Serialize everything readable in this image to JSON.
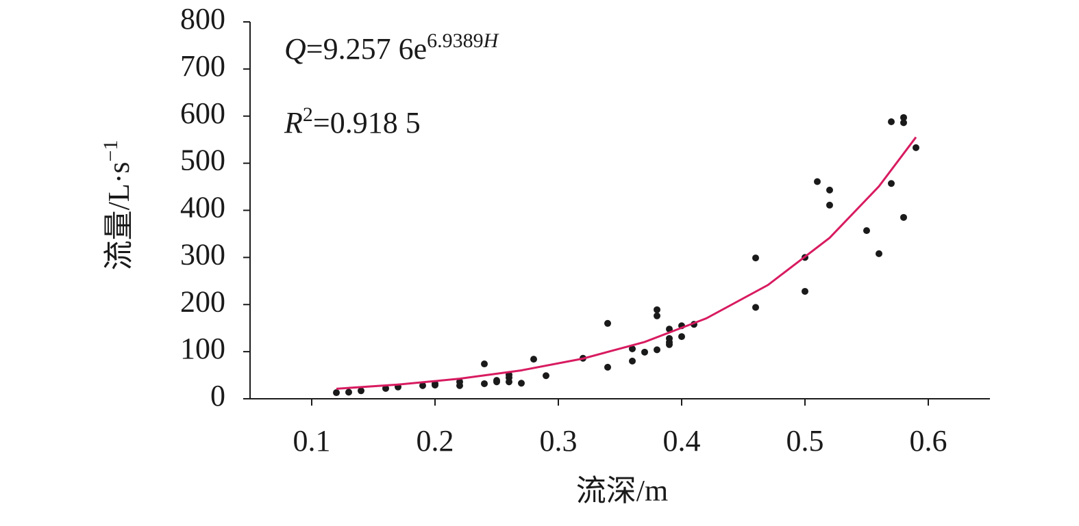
{
  "chart_data": {
    "type": "scatter",
    "xlabel": "流深/m",
    "ylabel": "流量/L·s",
    "ylabel_sup": "−1",
    "equation": {
      "var": "Q",
      "coef": "=9.257 6e",
      "exp": "6.9389",
      "exp_var": "H"
    },
    "r2": {
      "var": "R",
      "sup": "2",
      "val": "=0.918 5"
    },
    "xlim": [
      0.05,
      0.65
    ],
    "ylim": [
      0,
      800
    ],
    "xticks": [
      0.1,
      0.2,
      0.3,
      0.4,
      0.5,
      0.6
    ],
    "yticks": [
      0,
      100,
      200,
      300,
      400,
      500,
      600,
      700,
      800
    ],
    "series": [
      {
        "type": "scatter",
        "color": "#1a1a1a",
        "x": [
          0.12,
          0.13,
          0.14,
          0.16,
          0.17,
          0.19,
          0.2,
          0.2,
          0.22,
          0.22,
          0.24,
          0.24,
          0.25,
          0.25,
          0.26,
          0.26,
          0.26,
          0.27,
          0.28,
          0.29,
          0.32,
          0.34,
          0.34,
          0.36,
          0.36,
          0.37,
          0.38,
          0.38,
          0.38,
          0.39,
          0.39,
          0.39,
          0.39,
          0.4,
          0.4,
          0.41,
          0.46,
          0.46,
          0.5,
          0.5,
          0.51,
          0.52,
          0.52,
          0.55,
          0.56,
          0.57,
          0.57,
          0.58,
          0.58,
          0.58,
          0.59
        ],
        "values": [
          13,
          14,
          17,
          22,
          25,
          28,
          29,
          32,
          28,
          36,
          74,
          32,
          36,
          39,
          36,
          45,
          51,
          33,
          84,
          49,
          86,
          160,
          67,
          80,
          106,
          99,
          189,
          176,
          104,
          148,
          128,
          120,
          115,
          155,
          132,
          158,
          299,
          194,
          300,
          228,
          461,
          443,
          411,
          357,
          308,
          588,
          457,
          597,
          586,
          385,
          533
        ]
      },
      {
        "type": "line",
        "color": "#d81b60",
        "x": [
          0.12,
          0.17,
          0.22,
          0.27,
          0.32,
          0.37,
          0.42,
          0.47,
          0.52,
          0.56,
          0.59
        ],
        "values": [
          21.3,
          30.1,
          42.6,
          60.3,
          85.3,
          120.6,
          170.7,
          241.5,
          341.6,
          450.9,
          555.3
        ]
      }
    ]
  }
}
